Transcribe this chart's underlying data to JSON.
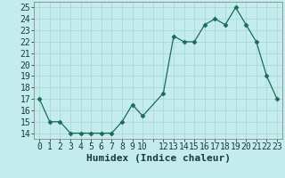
{
  "x": [
    0,
    1,
    2,
    3,
    4,
    5,
    6,
    7,
    8,
    9,
    10,
    12,
    13,
    14,
    15,
    16,
    17,
    18,
    19,
    20,
    21,
    22,
    23
  ],
  "y": [
    17,
    15,
    15,
    14,
    14,
    14,
    14,
    14,
    15,
    16.5,
    15.5,
    17.5,
    22.5,
    22,
    22,
    23.5,
    24,
    23.5,
    25,
    23.5,
    22,
    19,
    17
  ],
  "xlabel": "Humidex (Indice chaleur)",
  "ylim": [
    13.5,
    25.5
  ],
  "yticks": [
    14,
    15,
    16,
    17,
    18,
    19,
    20,
    21,
    22,
    23,
    24,
    25
  ],
  "xtick_labels": [
    "0",
    "1",
    "2",
    "3",
    "4",
    "5",
    "6",
    "7",
    "8",
    "9",
    "10",
    "",
    "12",
    "13",
    "14",
    "15",
    "16",
    "17",
    "18",
    "19",
    "20",
    "21",
    "22",
    "23"
  ],
  "xtick_positions": [
    0,
    1,
    2,
    3,
    4,
    5,
    6,
    7,
    8,
    9,
    10,
    11,
    12,
    13,
    14,
    15,
    16,
    17,
    18,
    19,
    20,
    21,
    22,
    23
  ],
  "xlim": [
    -0.5,
    23.5
  ],
  "line_color": "#1a6b5a",
  "marker": "D",
  "marker_size": 2.5,
  "bg_color": "#c5ecec",
  "grid_color": "#aad8d8",
  "font_color": "#1a3a3a",
  "xlabel_fontsize": 8,
  "tick_fontsize": 7
}
